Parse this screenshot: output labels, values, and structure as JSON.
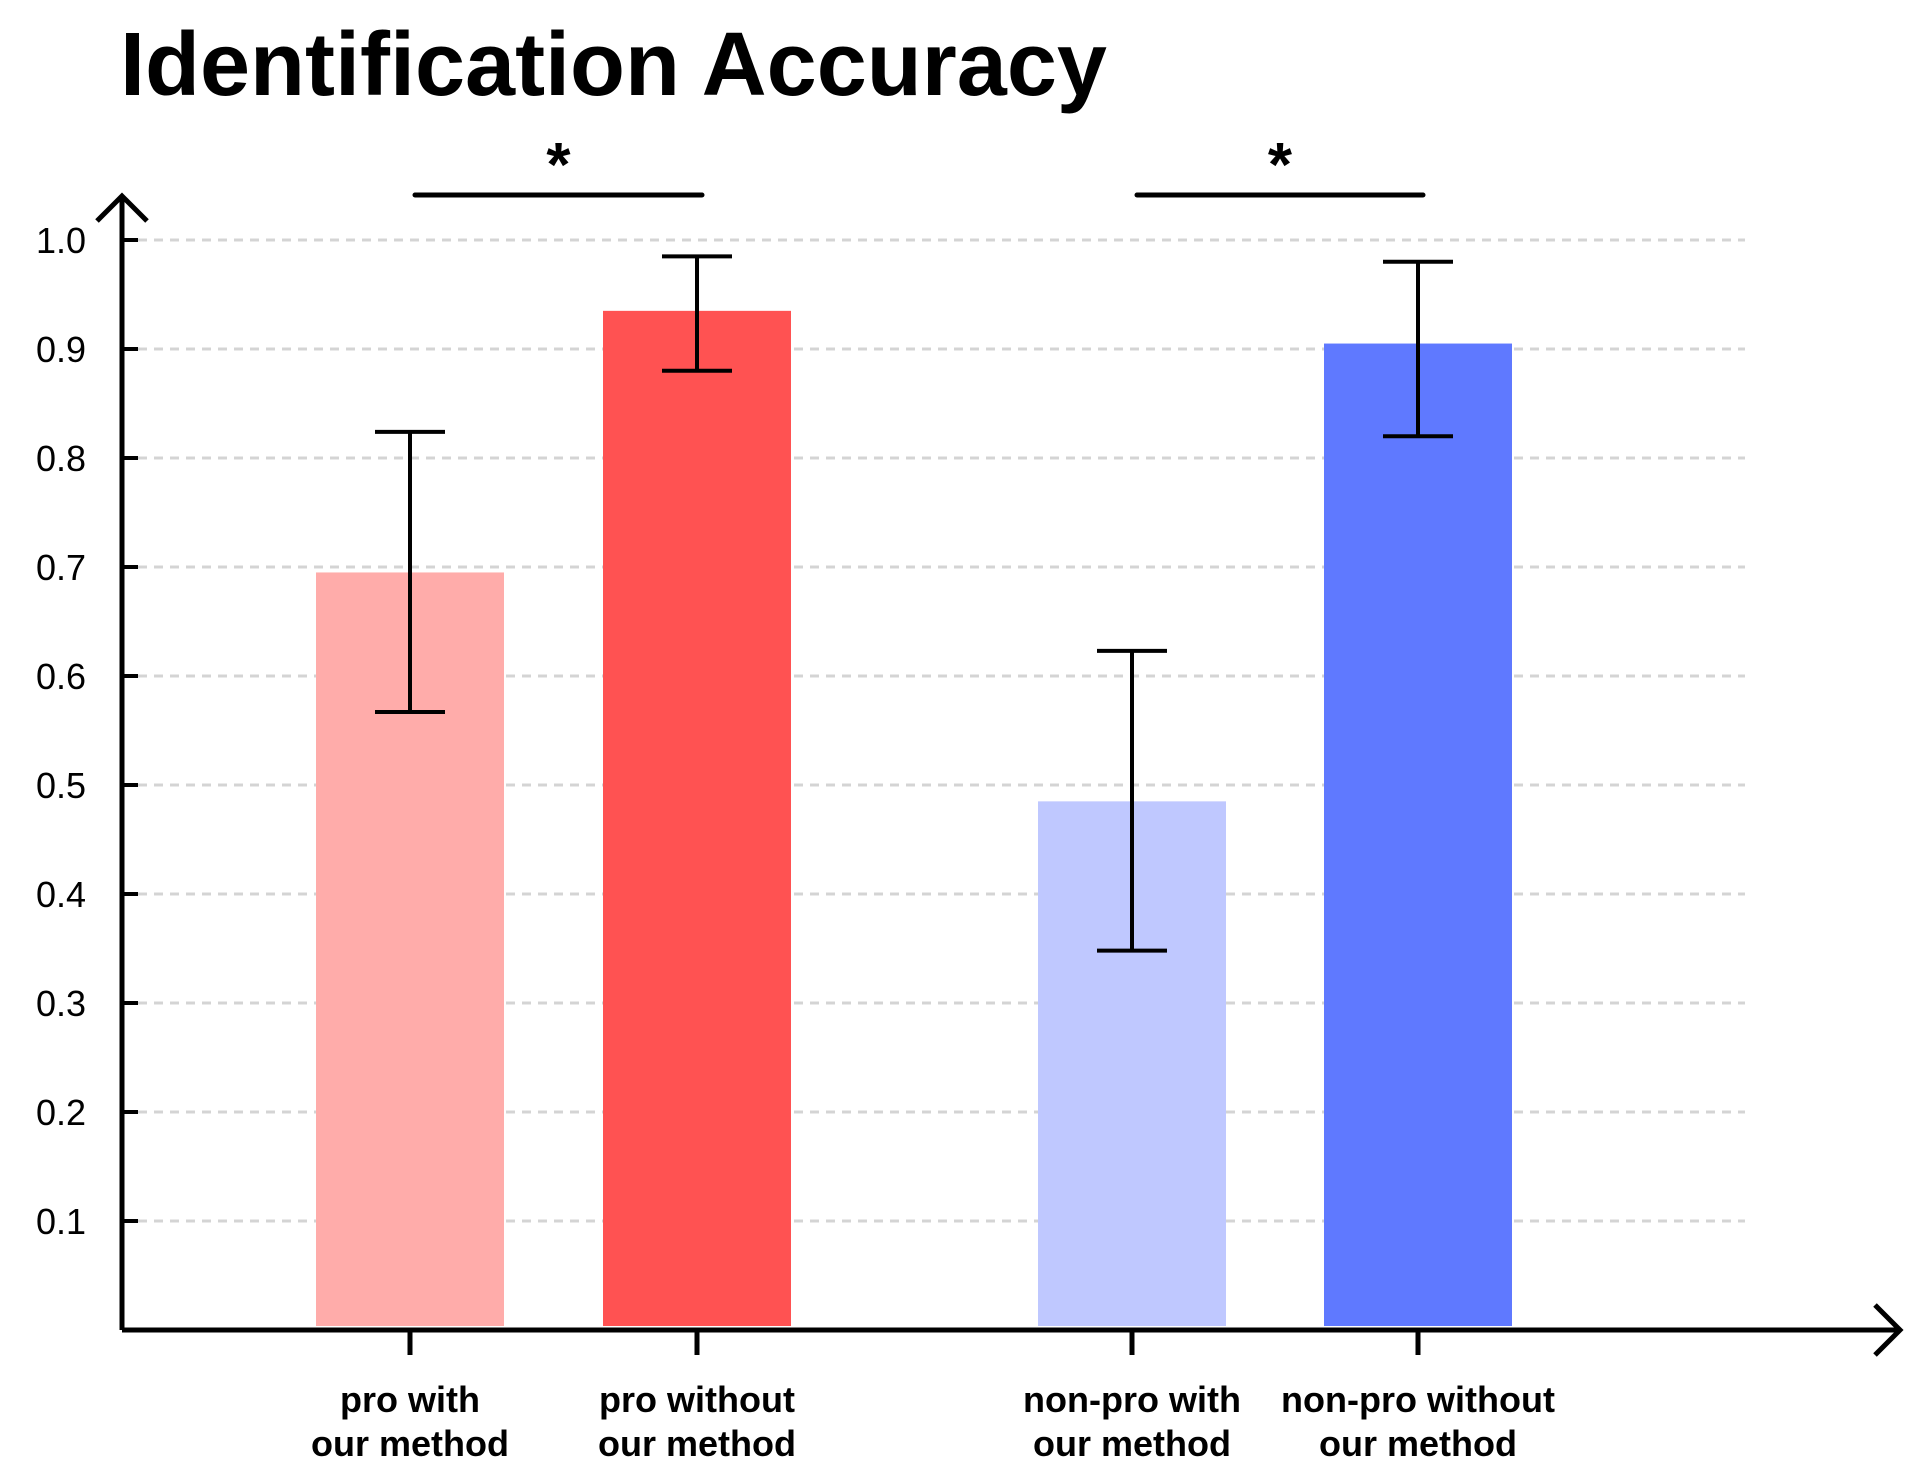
{
  "chart_data": {
    "type": "bar",
    "title": "Identification Accuracy",
    "xlabel": "",
    "ylabel": "",
    "ylim": [
      0,
      1.0
    ],
    "yticks": [
      0.1,
      0.2,
      0.3,
      0.4,
      0.5,
      0.6,
      0.7,
      0.8,
      0.9,
      1.0
    ],
    "ytick_labels": [
      "0.1",
      "0.2",
      "0.3",
      "0.4",
      "0.5",
      "0.6",
      "0.7",
      "0.8",
      "0.9",
      "1.0"
    ],
    "grid": true,
    "categories": [
      [
        "pro with",
        "our method"
      ],
      [
        "pro without",
        "our method"
      ],
      [
        "non-pro with",
        "our method"
      ],
      [
        "non-pro without",
        "our method"
      ]
    ],
    "values": [
      0.695,
      0.935,
      0.485,
      0.905
    ],
    "error_low": [
      0.567,
      0.88,
      0.348,
      0.82
    ],
    "error_high": [
      0.824,
      0.985,
      0.623,
      0.98
    ],
    "colors": [
      "#ffacaa",
      "#ff5252",
      "#bfc8ff",
      "#5f79ff"
    ],
    "significance": [
      {
        "from": 0,
        "to": 1,
        "label": "*"
      },
      {
        "from": 2,
        "to": 3,
        "label": "*"
      }
    ]
  }
}
